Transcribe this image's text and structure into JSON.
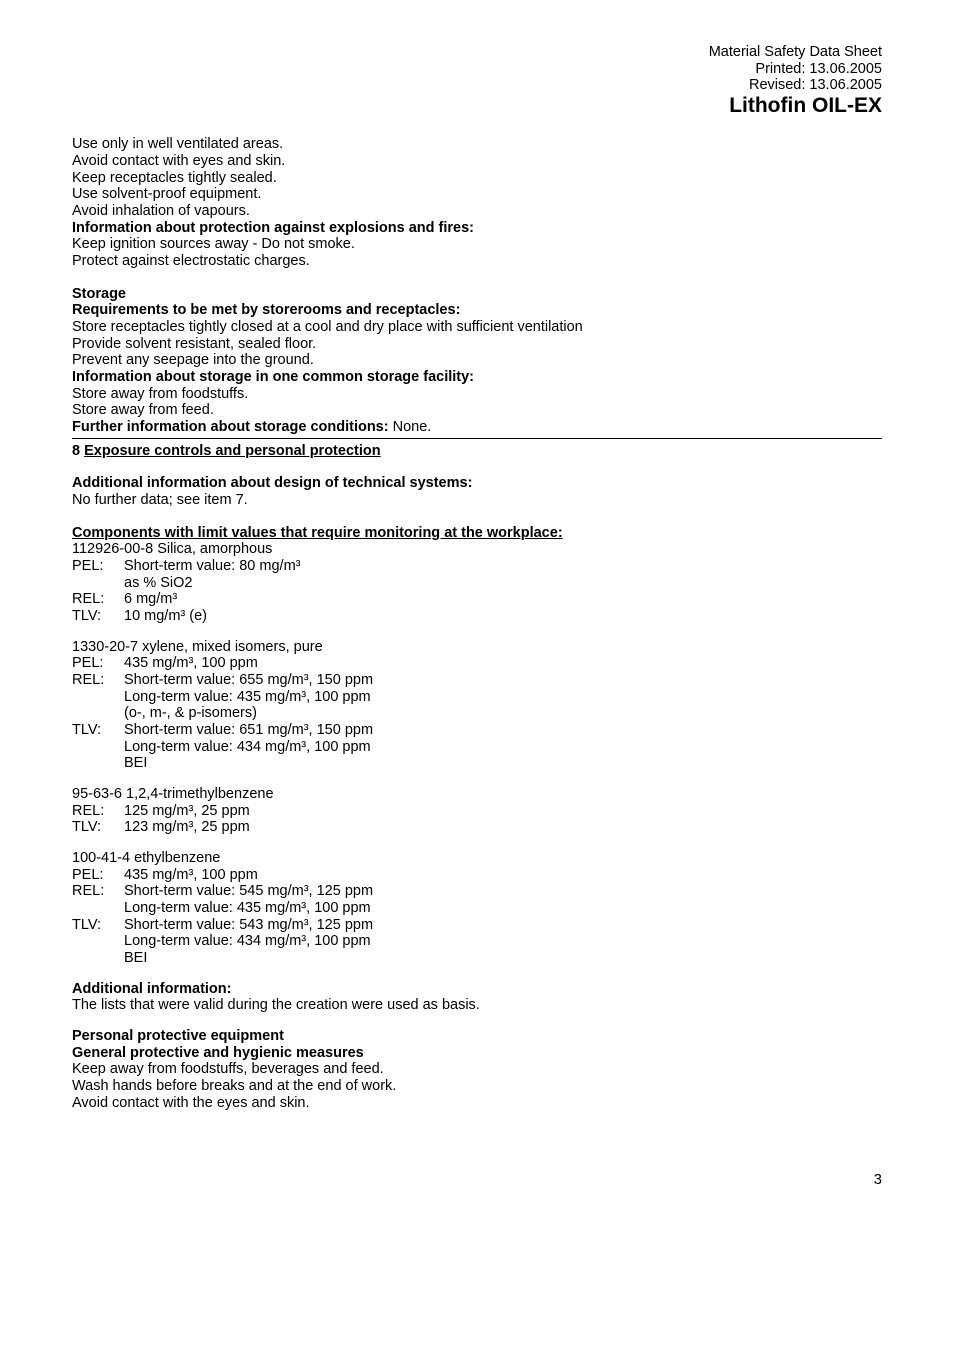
{
  "header": {
    "line1": "Material Safety Data Sheet",
    "line2": "Printed: 13.06.2005",
    "line3": "Revised: 13.06.2005",
    "product": "Lithofin OIL-EX"
  },
  "handling": {
    "l1": "Use only in well ventilated areas.",
    "l2": "Avoid contact with eyes and skin.",
    "l3": "Keep receptacles tightly sealed.",
    "l4": "Use solvent-proof equipment.",
    "l5": "Avoid inhalation of vapours.",
    "explosion_heading": "Information about protection against explosions and fires:",
    "l6": "Keep ignition sources away - Do not smoke.",
    "l7": "Protect against electrostatic charges."
  },
  "storage": {
    "heading": "Storage",
    "req_heading": "Requirements to be met by storerooms and receptacles:",
    "l1": "Store receptacles tightly closed at a cool and dry place with sufficient ventilation",
    "l2": "Provide solvent resistant, sealed floor.",
    "l3": "Prevent any seepage into the ground.",
    "common_heading": "Information about storage in one common storage facility:",
    "l4": "Store away from foodstuffs.",
    "l5": "Store away from feed.",
    "further_label": "Further information about storage conditions: ",
    "further_value": "None."
  },
  "sec8": {
    "num": "8 ",
    "title": "Exposure controls and personal protection",
    "additional_heading": "Additional information about design of technical systems:",
    "additional_text": "No further data; see item 7.",
    "components_heading": "Components with limit values that require monitoring at the workplace:"
  },
  "labels": {
    "PEL": "PEL:",
    "REL": "REL:",
    "TLV": "TLV:"
  },
  "comp1": {
    "name": "112926-00-8 Silica, amorphous",
    "pel1": "Short-term value: 80 mg/m³",
    "pel2": "as % SiO2",
    "rel": "6 mg/m³",
    "tlv": "10 mg/m³ (e)"
  },
  "comp2": {
    "name": "1330-20-7 xylene, mixed isomers, pure",
    "pel": "435 mg/m³, 100 ppm",
    "rel1": "Short-term value: 655 mg/m³, 150 ppm",
    "rel2": "Long-term value: 435 mg/m³, 100 ppm",
    "rel3": "(o-, m-, & p-isomers)",
    "tlv1": "Short-term value: 651 mg/m³, 150 ppm",
    "tlv2": "Long-term value: 434 mg/m³, 100 ppm",
    "tlv3": "BEI"
  },
  "comp3": {
    "name": "95-63-6 1,2,4-trimethylbenzene",
    "rel": "125 mg/m³, 25 ppm",
    "tlv": "123 mg/m³, 25 ppm"
  },
  "comp4": {
    "name": "100-41-4 ethylbenzene",
    "pel": "435 mg/m³, 100 ppm",
    "rel1": "Short-term value: 545 mg/m³, 125 ppm",
    "rel2": "Long-term value: 435 mg/m³, 100 ppm",
    "tlv1": "Short-term value: 543 mg/m³, 125 ppm",
    "tlv2": "Long-term value: 434 mg/m³, 100 ppm",
    "tlv3": "BEI"
  },
  "addinfo": {
    "heading": "Additional information:",
    "text": "The lists that were valid during the creation were used as basis."
  },
  "ppe": {
    "heading": "Personal protective equipment",
    "subheading": "General protective and hygienic measures",
    "l1": "Keep away from foodstuffs, beverages and feed.",
    "l2": "Wash hands before breaks and at the end of work.",
    "l3": "Avoid contact with the eyes and skin."
  },
  "footer": {
    "page": "3"
  }
}
